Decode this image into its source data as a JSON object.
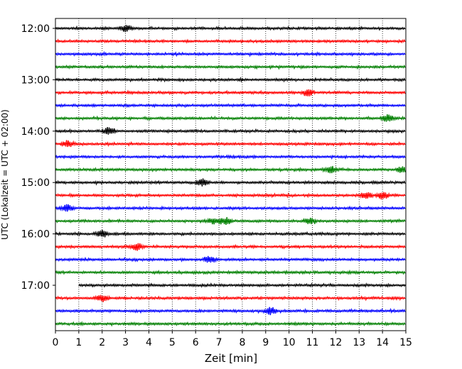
{
  "chart_data": {
    "type": "line",
    "title": "",
    "xlabel": "Zeit  [min]",
    "ylabel": "UTC (Lokalzeit = UTC + 02:00)",
    "xlim": [
      0,
      15
    ],
    "x_ticks": [
      0,
      1,
      2,
      3,
      4,
      5,
      6,
      7,
      8,
      9,
      10,
      11,
      12,
      13,
      14,
      15
    ],
    "y_tick_labels": [
      "12:00",
      "13:00",
      "14:00",
      "15:00",
      "16:00",
      "17:00"
    ],
    "grid": "vertical dotted lines at each minute",
    "trace_interval_min": 15,
    "trace_colors": [
      "#000000",
      "#ff0000",
      "#0000ff",
      "#008000"
    ],
    "traces": [
      {
        "start": "12:00",
        "color": "#000000",
        "x_start": 0,
        "x_end": 15,
        "bursts": [
          3.0
        ]
      },
      {
        "start": "12:15",
        "color": "#ff0000",
        "x_start": 0,
        "x_end": 15,
        "bursts": []
      },
      {
        "start": "12:30",
        "color": "#0000ff",
        "x_start": 0,
        "x_end": 15,
        "bursts": []
      },
      {
        "start": "12:45",
        "color": "#008000",
        "x_start": 0,
        "x_end": 15,
        "bursts": []
      },
      {
        "start": "13:00",
        "color": "#000000",
        "x_start": 0,
        "x_end": 15,
        "bursts": []
      },
      {
        "start": "13:15",
        "color": "#ff0000",
        "x_start": 0,
        "x_end": 15,
        "bursts": [
          10.8
        ]
      },
      {
        "start": "13:30",
        "color": "#0000ff",
        "x_start": 0,
        "x_end": 15,
        "bursts": []
      },
      {
        "start": "13:45",
        "color": "#008000",
        "x_start": 0,
        "x_end": 15,
        "bursts": [
          14.2
        ]
      },
      {
        "start": "14:00",
        "color": "#000000",
        "x_start": 0,
        "x_end": 15,
        "bursts": [
          2.3
        ]
      },
      {
        "start": "14:15",
        "color": "#ff0000",
        "x_start": 0,
        "x_end": 15,
        "bursts": [
          0.55
        ]
      },
      {
        "start": "14:30",
        "color": "#0000ff",
        "x_start": 0,
        "x_end": 15,
        "bursts": []
      },
      {
        "start": "14:45",
        "color": "#008000",
        "x_start": 0,
        "x_end": 15,
        "bursts": [
          11.8,
          14.85
        ]
      },
      {
        "start": "15:00",
        "color": "#000000",
        "x_start": 0,
        "x_end": 15,
        "bursts": [
          6.3
        ]
      },
      {
        "start": "15:15",
        "color": "#ff0000",
        "x_start": 0,
        "x_end": 15,
        "bursts": [
          13.3,
          14.0
        ]
      },
      {
        "start": "15:30",
        "color": "#0000ff",
        "x_start": 0,
        "x_end": 15,
        "bursts": [
          0.5
        ]
      },
      {
        "start": "15:45",
        "color": "#008000",
        "x_start": 0,
        "x_end": 15,
        "bursts": [
          6.8,
          7.3,
          10.9
        ]
      },
      {
        "start": "16:00",
        "color": "#000000",
        "x_start": 0,
        "x_end": 15,
        "bursts": [
          2.0
        ]
      },
      {
        "start": "16:15",
        "color": "#ff0000",
        "x_start": 0,
        "x_end": 15,
        "bursts": [
          3.5
        ]
      },
      {
        "start": "16:30",
        "color": "#0000ff",
        "x_start": 0,
        "x_end": 15,
        "bursts": [
          6.6
        ]
      },
      {
        "start": "16:45",
        "color": "#008000",
        "x_start": 0,
        "x_end": 15,
        "bursts": []
      },
      {
        "start": "17:00",
        "color": "#000000",
        "x_start": 1.0,
        "x_end": 15,
        "bursts": []
      },
      {
        "start": "17:15",
        "color": "#ff0000",
        "x_start": 0,
        "x_end": 15,
        "bursts": [
          2.0
        ]
      },
      {
        "start": "17:30",
        "color": "#0000ff",
        "x_start": 0,
        "x_end": 15,
        "bursts": [
          9.2
        ]
      },
      {
        "start": "17:45",
        "color": "#008000",
        "x_start": 0,
        "x_end": 15,
        "bursts": []
      }
    ]
  }
}
